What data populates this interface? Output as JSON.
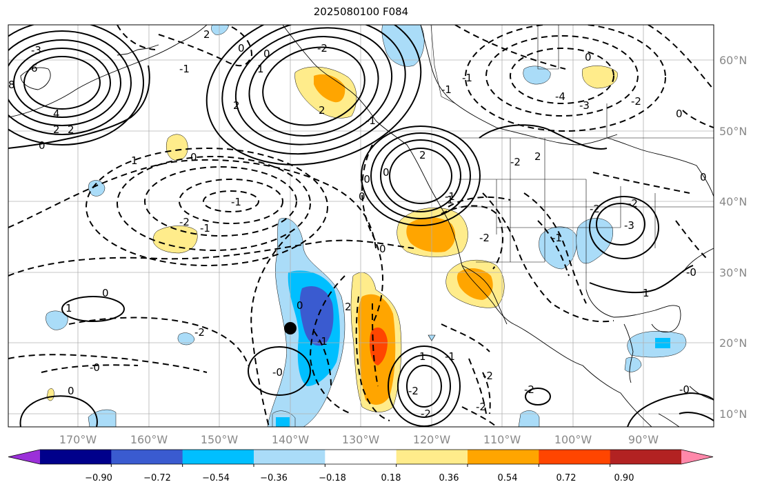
{
  "title": "2025080100 F084",
  "grid": {
    "lat_labels": [
      "60°N",
      "50°N",
      "40°N",
      "30°N",
      "20°N",
      "10°N"
    ],
    "lon_labels": [
      "170°W",
      "160°W",
      "150°W",
      "140°W",
      "130°W",
      "120°W",
      "110°W",
      "100°W",
      "90°W"
    ]
  },
  "colorbar": {
    "ticks": [
      "−0.90",
      "−0.72",
      "−0.54",
      "−0.36",
      "−0.18",
      "0.18",
      "0.36",
      "0.54",
      "0.72",
      "0.90"
    ],
    "colors": [
      "#9b30d9",
      "#00008b",
      "#3a5bd0",
      "#00bfff",
      "#aadcf8",
      "#ffffff",
      "#ffec8b",
      "#ffa500",
      "#ff4500",
      "#b22222",
      "#ff88aa"
    ]
  },
  "contour_labels": [
    "2",
    "0",
    "-3",
    "6",
    "8",
    "4",
    "2",
    "2",
    "0",
    "1",
    "0",
    "2",
    "-2",
    "1",
    "0",
    "-2",
    "-1",
    "-1",
    "0",
    "2",
    "-3",
    "-4",
    "-1",
    "-2",
    "0",
    "-2",
    "0",
    "-1",
    "-2",
    "-3",
    "-2",
    "-2",
    "-0",
    "0",
    "1",
    "-2",
    "-0",
    "0",
    "-1",
    "1",
    "-2",
    "-2",
    "2",
    "-1",
    "-2",
    "-2",
    "-2",
    "-0",
    "-0",
    "-1",
    "-0",
    "0",
    "-1",
    "2",
    "1",
    "-1",
    "0",
    "2",
    "-1",
    "0",
    "0",
    "1"
  ],
  "marker": "station"
}
